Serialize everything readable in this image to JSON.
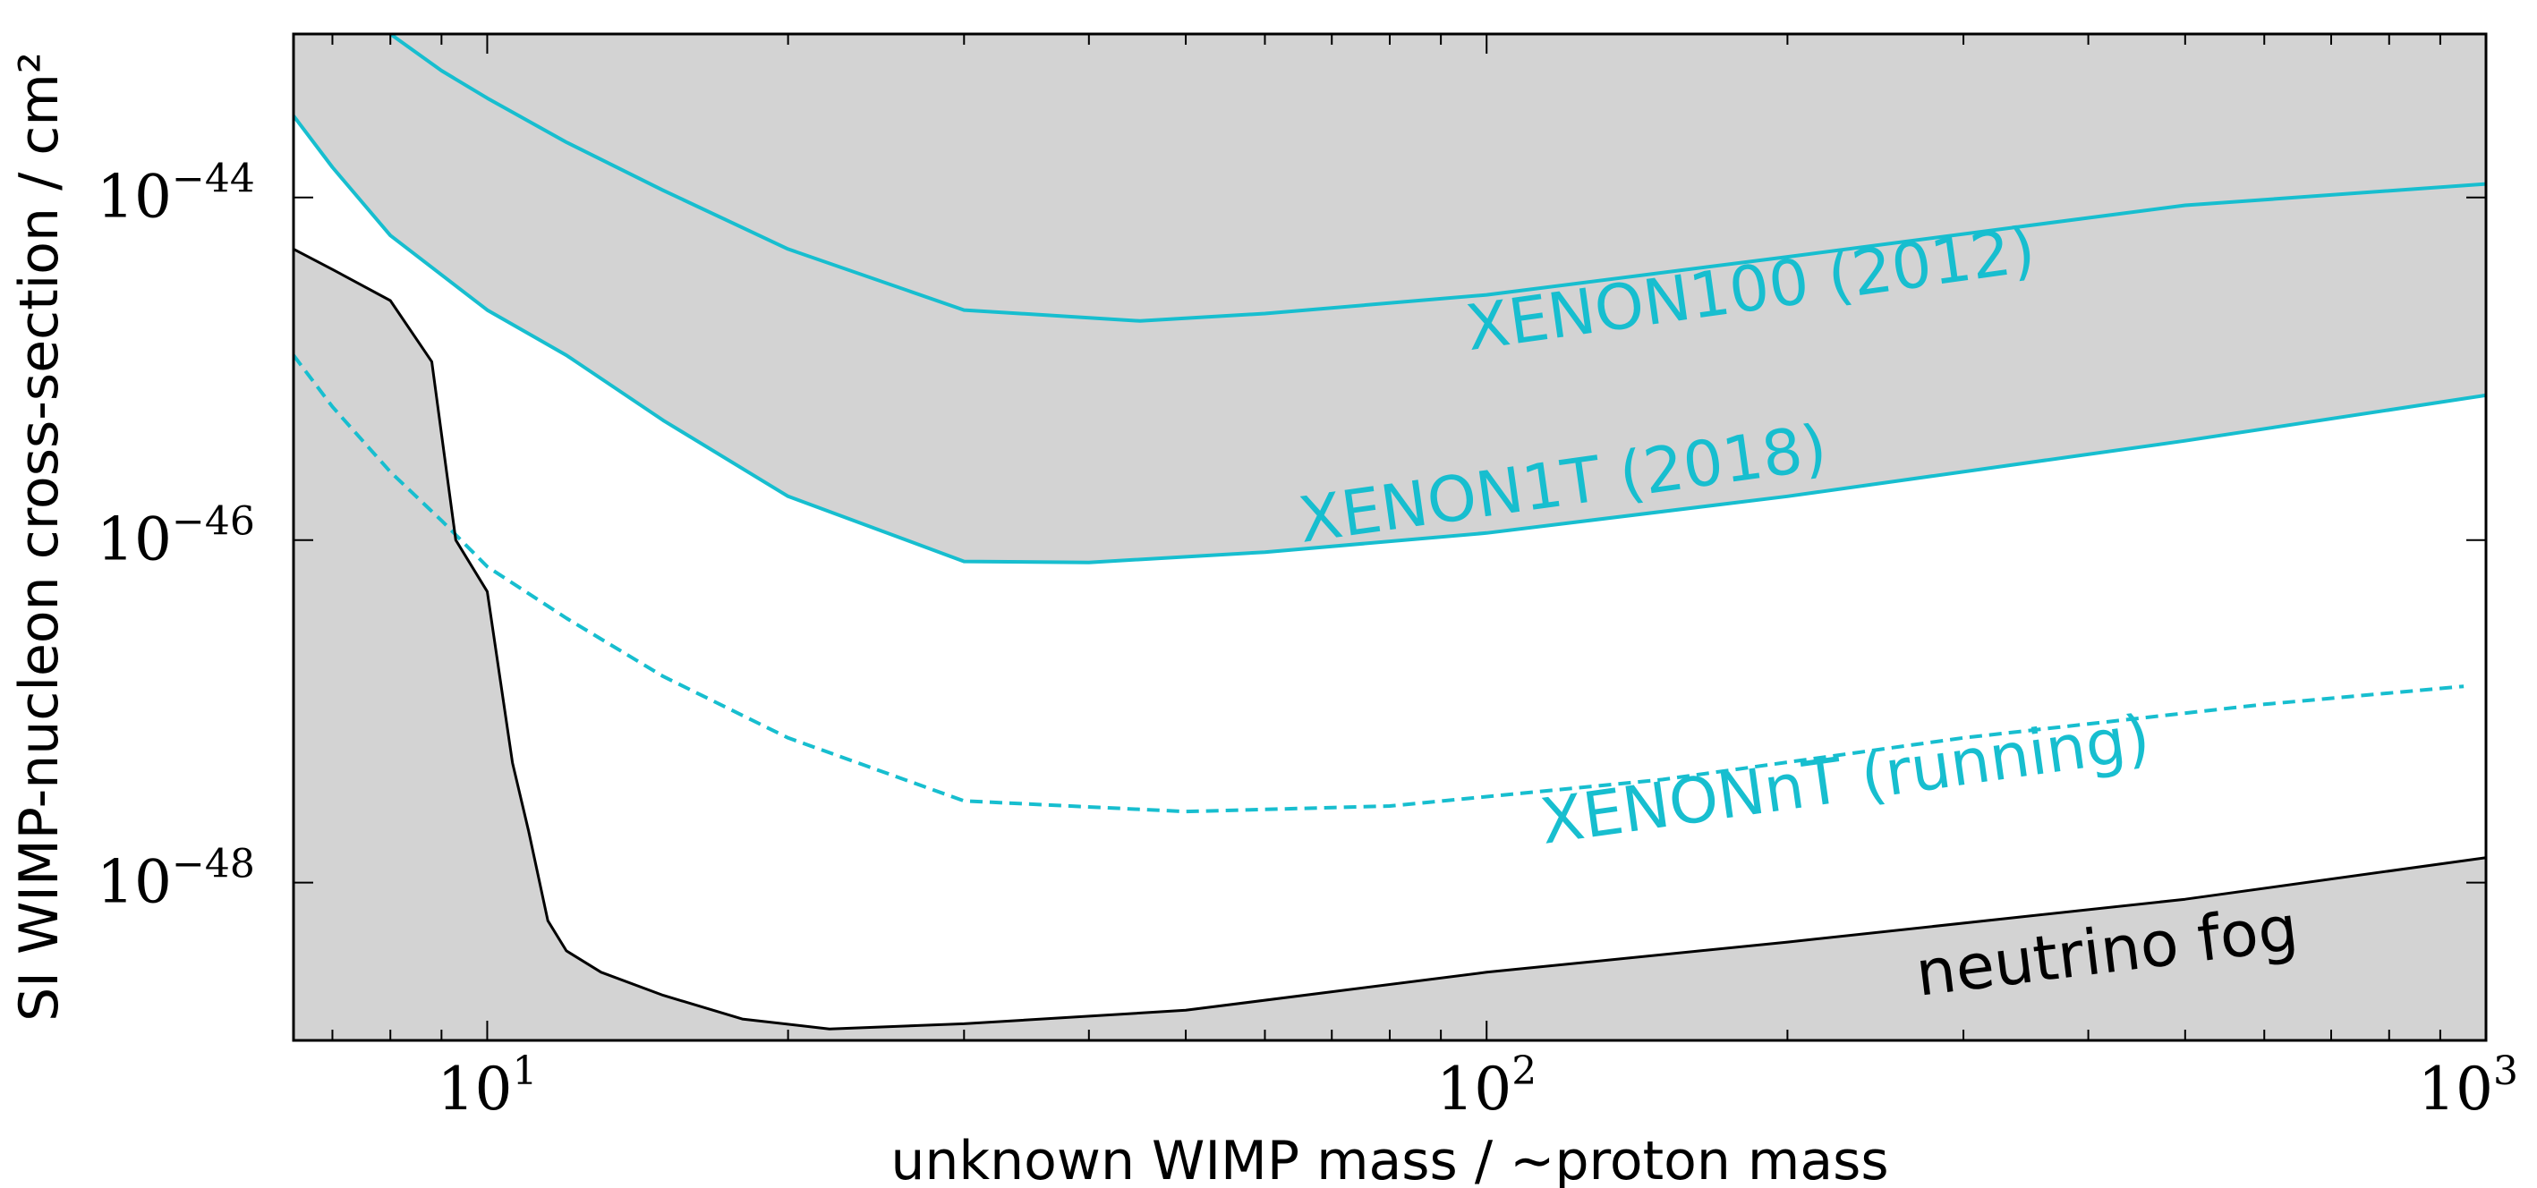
{
  "chart_data": {
    "type": "line",
    "title": "",
    "xlabel": "unknown WIMP mass / ∼proton mass",
    "ylabel": "SI WIMP-nucleon cross-section / cm²",
    "x_scale": "log",
    "y_scale": "log",
    "xlim": [
      6.4,
      1000
    ],
    "ylim": [
      1.2e-49,
      9e-44
    ],
    "x_ticks": [
      {
        "value": 10,
        "base": "10",
        "exp": "1"
      },
      {
        "value": 100,
        "base": "10",
        "exp": "2"
      },
      {
        "value": 1000,
        "base": "10",
        "exp": "3"
      }
    ],
    "y_ticks": [
      {
        "value": 1e-44,
        "base": "10",
        "exp": "−44"
      },
      {
        "value": 1e-46,
        "base": "10",
        "exp": "−46"
      },
      {
        "value": 1e-48,
        "base": "10",
        "exp": "−48"
      }
    ],
    "grid": false,
    "legend": "none",
    "shaded_regions": [
      "above XENON100 (2012)",
      "between XENON1T (2018) and XENON100 (2012)",
      "below neutrino fog"
    ],
    "colors": {
      "xenon": "#17becf",
      "fog": "#000000",
      "shade": "#d3d3d3"
    },
    "series": [
      {
        "name": "XENON100 (2012)",
        "style": "solid",
        "label_x": 185,
        "label_y": 2.2e-45,
        "label_rotation_deg": -8,
        "x": [
          8.0,
          9,
          10,
          12,
          15,
          20,
          30,
          45,
          60,
          100,
          200,
          500,
          1000
        ],
        "y": [
          9e-44,
          5.5e-44,
          3.8e-44,
          2.1e-44,
          1.1e-44,
          5e-45,
          2.2e-45,
          1.9e-45,
          2.1e-45,
          2.7e-45,
          4.5e-45,
          9e-45,
          1.2e-44
        ]
      },
      {
        "name": "XENON1T (2018)",
        "style": "solid",
        "label_x": 120,
        "label_y": 1.6e-46,
        "label_rotation_deg": -8,
        "x": [
          6.4,
          7,
          8,
          10,
          12,
          15,
          20,
          30,
          40,
          60,
          100,
          200,
          500,
          1000
        ],
        "y": [
          3e-44,
          1.5e-44,
          6e-45,
          2.2e-45,
          1.2e-45,
          5e-46,
          1.8e-46,
          7.5e-47,
          7.4e-47,
          8.5e-47,
          1.1e-46,
          1.8e-46,
          3.8e-46,
          7e-46
        ]
      },
      {
        "name": "XENONnT (running)",
        "style": "dashed",
        "label_x": 230,
        "label_y": 3e-48,
        "label_rotation_deg": -8,
        "x": [
          6.4,
          7,
          8,
          9,
          10,
          12,
          15,
          20,
          30,
          50,
          80,
          150,
          300,
          600,
          950
        ],
        "y": [
          1.2e-45,
          6e-46,
          2.5e-46,
          1.3e-46,
          7e-47,
          3.5e-47,
          1.6e-47,
          7e-48,
          3e-48,
          2.6e-48,
          2.8e-48,
          4e-48,
          7e-48,
          1.1e-47,
          1.4e-47
        ]
      },
      {
        "name": "neutrino fog",
        "style": "solid",
        "label_x": 420,
        "label_y": 3e-49,
        "label_rotation_deg": -7,
        "x": [
          6.4,
          7,
          8,
          8.8,
          9.3,
          10,
          10.6,
          11,
          11.5,
          12,
          13,
          15,
          18,
          22,
          30,
          50,
          100,
          200,
          500,
          1000
        ],
        "y": [
          5e-45,
          3.8e-45,
          2.5e-45,
          1.1e-45,
          1e-46,
          5e-47,
          5e-48,
          2e-48,
          6e-49,
          4e-49,
          3e-49,
          2.2e-49,
          1.6e-49,
          1.4e-49,
          1.5e-49,
          1.8e-49,
          3e-49,
          4.5e-49,
          8e-49,
          1.4e-48
        ]
      }
    ]
  }
}
